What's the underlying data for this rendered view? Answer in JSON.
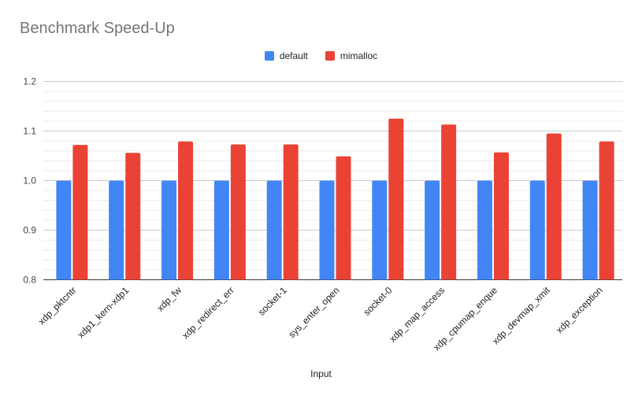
{
  "chart_data": {
    "type": "bar",
    "title": "Benchmark Speed-Up",
    "xlabel": "Input",
    "ylabel": "",
    "ylim": [
      0.8,
      1.2
    ],
    "yticks": [
      "0.8",
      "0.9",
      "1.0",
      "1.1",
      "1.2"
    ],
    "minor_grid_step": 0.02,
    "grid": true,
    "legend_position": "top",
    "categories": [
      "xdp_pktcntr",
      "xdp1_kern-xdp1",
      "xdp_fw",
      "xdp_redirect_err",
      "socket-1",
      "sys_enter_open",
      "socket-0",
      "xdp_map_access",
      "xdp_cpumap_enque",
      "xdp_devmap_xmit",
      "xdp_exception"
    ],
    "series": [
      {
        "name": "default",
        "color": "#4285f4",
        "values": [
          1,
          1,
          1,
          1,
          1,
          1,
          1,
          1,
          1,
          1,
          1
        ]
      },
      {
        "name": "mimalloc",
        "color": "#ea4335",
        "values": [
          1.072,
          1.056,
          1.079,
          1.073,
          1.073,
          1.049,
          1.125,
          1.113,
          1.057,
          1.095,
          1.079
        ]
      }
    ]
  }
}
